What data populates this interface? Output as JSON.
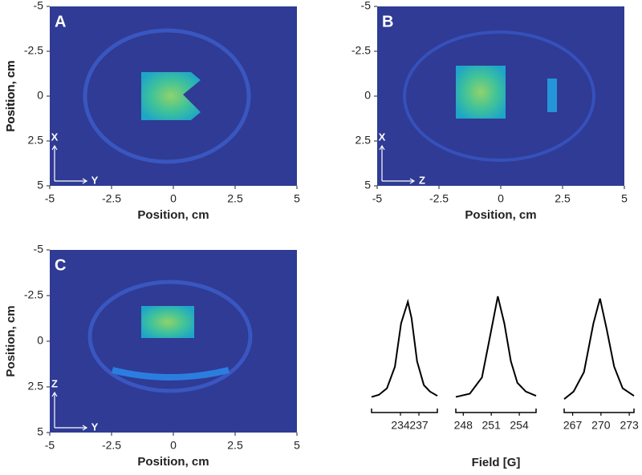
{
  "chart_data": [
    {
      "type": "image",
      "panel": "A",
      "xlabel": "Position, cm",
      "ylabel": "Position, cm",
      "xlim": [
        -5,
        5
      ],
      "ylim": [
        -5,
        5
      ],
      "y_reversed": true,
      "xticks": [
        -5,
        -2.5,
        0,
        2.5,
        5
      ],
      "yticks": [
        -5,
        -2.5,
        0,
        2.5,
        5
      ],
      "orientation": {
        "up": "X",
        "right": "Y"
      }
    },
    {
      "type": "image",
      "panel": "B",
      "xlabel": "Position, cm",
      "ylabel": "Position, cm",
      "xlim": [
        -5,
        5
      ],
      "ylim": [
        -5,
        5
      ],
      "y_reversed": true,
      "xticks": [
        -5,
        -2.5,
        0,
        2.5,
        5
      ],
      "yticks": [
        -5,
        -2.5,
        0,
        2.5,
        5
      ],
      "orientation": {
        "up": "X",
        "right": "Z"
      }
    },
    {
      "type": "image",
      "panel": "C",
      "xlabel": "Position, cm",
      "ylabel": "Position, cm",
      "xlim": [
        -5,
        5
      ],
      "ylim": [
        -5,
        5
      ],
      "y_reversed": true,
      "xticks": [
        -5,
        -2.5,
        0,
        2.5,
        5
      ],
      "yticks": [
        -5,
        -2.5,
        0,
        2.5,
        5
      ],
      "orientation": {
        "up": "Z",
        "right": "Y"
      }
    },
    {
      "type": "line",
      "color": "#000000",
      "xlim": [
        229.3,
        240
      ],
      "ylim": [
        0,
        1
      ],
      "xticks": [
        234,
        237
      ],
      "x": [
        229.3,
        230.5,
        231.8,
        233.1,
        234.1,
        235.2,
        235.8,
        236.7,
        237.8,
        238.8,
        240
      ],
      "values": [
        0.07,
        0.09,
        0.15,
        0.35,
        0.75,
        0.95,
        0.8,
        0.4,
        0.18,
        0.12,
        0.08
      ]
    },
    {
      "type": "line",
      "color": "#000000",
      "xlabel": "Field [G]",
      "xlim": [
        247.2,
        255.8
      ],
      "ylim": [
        0,
        1
      ],
      "xticks": [
        248,
        251,
        254
      ],
      "x": [
        247.2,
        248.7,
        250,
        250.8,
        251.7,
        252.4,
        253.1,
        253.8,
        254.7,
        255.8
      ],
      "values": [
        0.07,
        0.1,
        0.25,
        0.6,
        1.0,
        0.75,
        0.4,
        0.2,
        0.12,
        0.08
      ]
    },
    {
      "type": "line",
      "color": "#000000",
      "xlim": [
        266.1,
        273.5
      ],
      "ylim": [
        0,
        1
      ],
      "xticks": [
        267,
        270,
        273
      ],
      "x": [
        266.1,
        267.1,
        268.2,
        269.2,
        269.9,
        270.6,
        271.4,
        272.3,
        273.5
      ],
      "values": [
        0.05,
        0.12,
        0.3,
        0.75,
        0.98,
        0.7,
        0.35,
        0.15,
        0.08
      ]
    }
  ]
}
